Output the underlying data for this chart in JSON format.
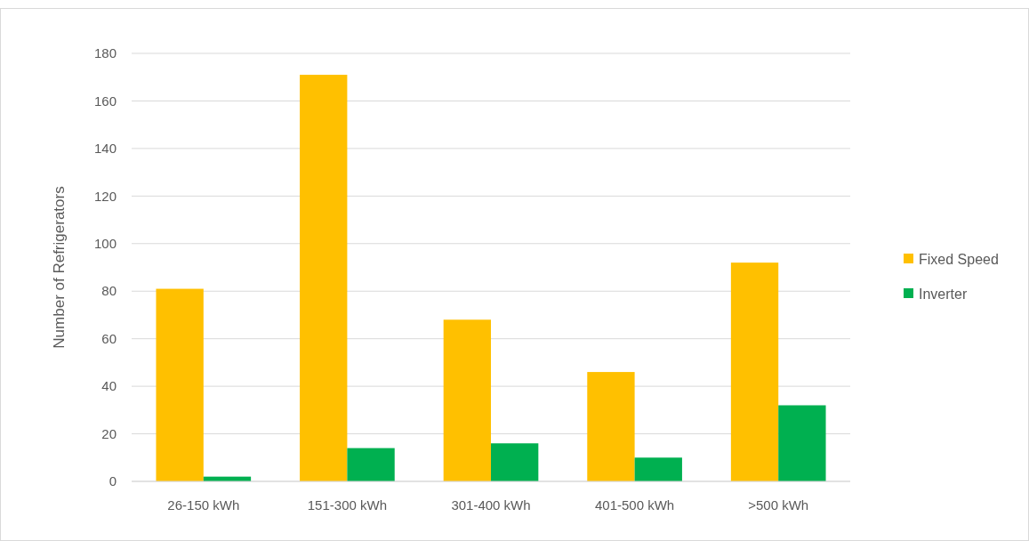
{
  "chart_data": {
    "type": "bar",
    "ylabel": "Number of Refrigerators",
    "categories": [
      "26-150 kWh",
      "151-300 kWh",
      "301-400 kWh",
      "401-500 kWh",
      ">500 kWh"
    ],
    "series": [
      {
        "name": "Fixed Speed",
        "color": "#ffc000",
        "values": [
          81,
          171,
          68,
          46,
          92
        ]
      },
      {
        "name": "Inverter",
        "color": "#00b050",
        "values": [
          2,
          14,
          16,
          10,
          32
        ]
      }
    ],
    "ylim": [
      0,
      180
    ],
    "yticks": [
      0,
      20,
      40,
      60,
      80,
      100,
      120,
      140,
      160,
      180
    ],
    "grid": "y",
    "legend": "right"
  }
}
